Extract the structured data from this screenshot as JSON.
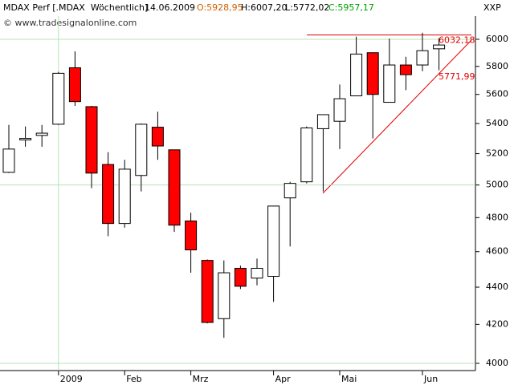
{
  "chart_data": {
    "type": "candlestick",
    "title": "MDAX Perf [.MDAX  Wöchentlich]",
    "date": "14.06.2009",
    "quote_labels": [
      "O:5928,95",
      "H:6007,20",
      "L:5772,02",
      "C:5957,17"
    ],
    "watermark": "© www.tradesignalonline.com",
    "corner_label": "XXP",
    "categories": [
      null,
      null,
      null,
      "2009",
      null,
      null,
      null,
      "Feb",
      null,
      null,
      null,
      "Mrz",
      null,
      null,
      null,
      null,
      "Apr",
      null,
      null,
      null,
      "Mai",
      null,
      null,
      null,
      null,
      "Jun",
      null
    ],
    "open": [
      5080,
      5290,
      5320,
      5395,
      5790,
      5515,
      5130,
      4765,
      5060,
      5375,
      5225,
      4780,
      4550,
      4230,
      4505,
      4450,
      4460,
      4920,
      5020,
      5365,
      5415,
      5590,
      5900,
      5545,
      5810,
      5810,
      5928.95
    ],
    "high": [
      5390,
      5380,
      5390,
      5760,
      5910,
      5520,
      5210,
      5160,
      5400,
      5480,
      5225,
      4830,
      4555,
      4550,
      4520,
      4560,
      4870,
      5020,
      5380,
      5460,
      5670,
      6020,
      5900,
      6005,
      5870,
      6050,
      6007.2
    ],
    "low": [
      5075,
      5245,
      5245,
      5390,
      5520,
      4980,
      4690,
      4740,
      4960,
      5160,
      4715,
      4480,
      4205,
      4130,
      4390,
      4410,
      4320,
      4630,
      5010,
      4960,
      5230,
      5590,
      5300,
      5545,
      5630,
      5765,
      5772.02
    ],
    "close": [
      5230,
      5300,
      5335,
      5750,
      5550,
      5075,
      4765,
      5100,
      5395,
      5250,
      4755,
      4610,
      4210,
      4480,
      4405,
      4505,
      4870,
      5010,
      5370,
      5460,
      5570,
      5890,
      5600,
      5810,
      5740,
      5915,
      5957.17
    ],
    "up_color": "#ffffff",
    "down_color": "#ff0000",
    "annotation_color": "#e00000",
    "annotations": [
      "6032,18",
      "5771,99"
    ],
    "resistance": 6032.18,
    "ylim": [
      3964,
      6177
    ],
    "log_scale": true,
    "yticks": [
      4000,
      4200,
      4400,
      4600,
      4800,
      5000,
      5200,
      5400,
      5600,
      5800,
      6000
    ],
    "grid": true
  }
}
